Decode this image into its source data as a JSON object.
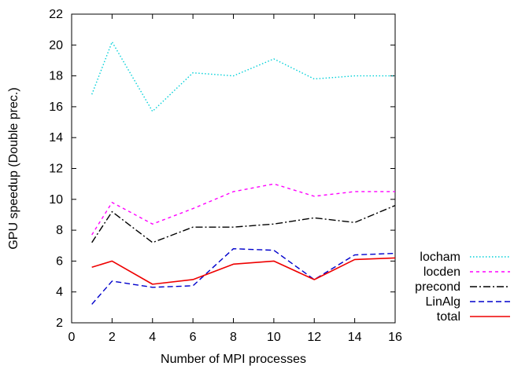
{
  "chart_data": {
    "type": "line",
    "title": "",
    "xlabel": "Number of MPI processes",
    "ylabel": "GPU speedup (Double prec.)",
    "xlim": [
      0,
      16
    ],
    "ylim": [
      2,
      22
    ],
    "xticks": [
      0,
      2,
      4,
      6,
      8,
      10,
      12,
      14,
      16
    ],
    "yticks": [
      2,
      4,
      6,
      8,
      10,
      12,
      14,
      16,
      18,
      20,
      22
    ],
    "x": [
      1,
      2,
      4,
      6,
      8,
      10,
      12,
      14,
      16
    ],
    "grid": false,
    "legend_position": "outside-right-bottom",
    "series": [
      {
        "name": "locham",
        "color": "#00d0d8",
        "dash": "dotted",
        "values": [
          16.8,
          20.2,
          15.7,
          18.2,
          18.0,
          19.1,
          17.8,
          18.0,
          18.0
        ]
      },
      {
        "name": "locden",
        "color": "#ff00ff",
        "dash": "dashed",
        "values": [
          7.7,
          9.8,
          8.4,
          9.4,
          10.5,
          11.0,
          10.2,
          10.5,
          10.5
        ]
      },
      {
        "name": "precond",
        "color": "#000000",
        "dash": "dashdot",
        "values": [
          7.2,
          9.2,
          7.2,
          8.2,
          8.2,
          8.4,
          8.8,
          8.5,
          9.6
        ]
      },
      {
        "name": "LinAlg",
        "color": "#0000cc",
        "dash": "longdash",
        "values": [
          3.2,
          4.7,
          4.3,
          4.4,
          6.8,
          6.7,
          4.8,
          6.4,
          6.5
        ]
      },
      {
        "name": "total",
        "color": "#ee0000",
        "dash": "solid",
        "values": [
          5.6,
          6.0,
          4.5,
          4.8,
          5.8,
          6.0,
          4.8,
          6.1,
          6.2
        ]
      }
    ]
  }
}
